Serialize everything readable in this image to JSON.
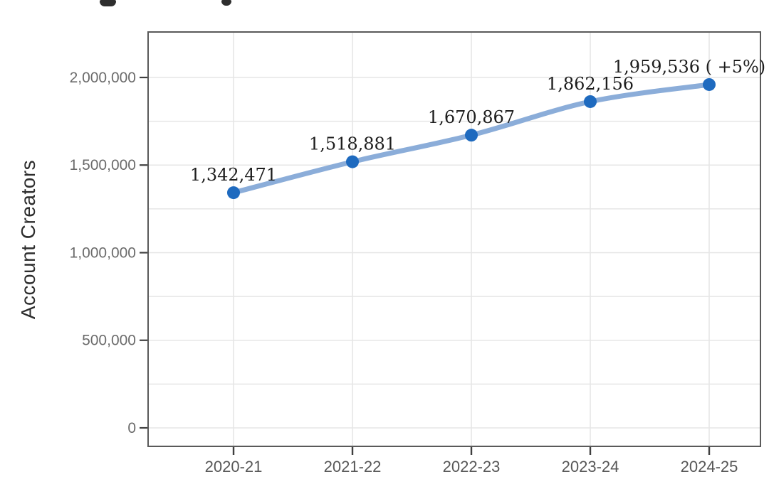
{
  "figure": {
    "background": "#ffffff",
    "clipped_title": {
      "note": "title cut off at top edge; only two letter descenders visible",
      "fragment_color": "#2e2e2e",
      "fragments": [
        {
          "x": 140,
          "width": 23,
          "height": 9
        },
        {
          "x": 311,
          "width": 14,
          "height": 8
        }
      ]
    }
  },
  "chart_data": {
    "type": "line",
    "title": "",
    "xlabel": "",
    "ylabel": "Account Creators",
    "categories": [
      "2020-21",
      "2021-22",
      "2022-23",
      "2023-24",
      "2024-25"
    ],
    "series": [
      {
        "name": "Account Creators",
        "values": [
          1342471,
          1518881,
          1670867,
          1862156,
          1959536
        ]
      }
    ],
    "point_labels": [
      "1,342,471",
      "1,518,881",
      "1,670,867",
      "1,862,156",
      "1,959,536 ( +5%)"
    ],
    "label_dx": [
      0,
      0,
      0,
      0,
      -28
    ],
    "y_ticks": [
      0,
      500000,
      1000000,
      1500000,
      2000000
    ],
    "y_tick_labels": [
      "0",
      "500,000",
      "1,000,000",
      "1,500,000",
      "2,000,000"
    ],
    "ylim": [
      -105480,
      2259630
    ],
    "minor_grid_step": 250000,
    "major_grid_max": 2000000,
    "grid": true,
    "legend": false,
    "colors": {
      "line": "#8BADD9",
      "point": "#1E6ABF",
      "grid": "#e6e6e6",
      "panel_border": "#5a5a5a",
      "tick": "#3f3f3f",
      "y_axis_text": "#6b6b6b",
      "x_axis_text": "#575757",
      "point_label_text": "#1d1d1d",
      "y_title_text": "#2d2d2d"
    }
  }
}
